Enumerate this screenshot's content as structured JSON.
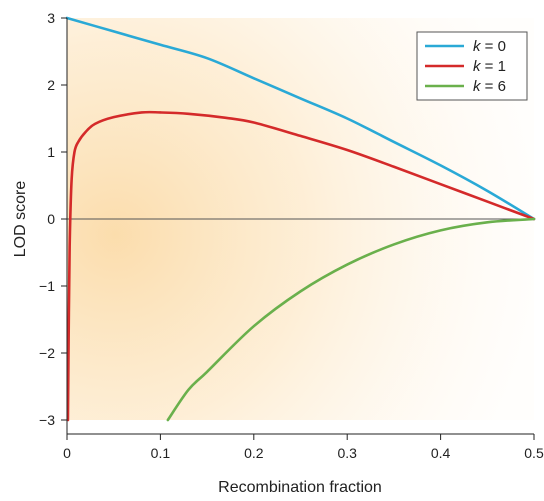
{
  "chart_data": {
    "type": "line",
    "title": "",
    "xlabel": "Recombination fraction",
    "ylabel": "LOD score",
    "xlim": [
      0,
      0.5
    ],
    "ylim": [
      -3,
      3
    ],
    "x_ticks": [
      0,
      0.1,
      0.2,
      0.3,
      0.4,
      0.5
    ],
    "x_tick_labels": [
      "0",
      "0.1",
      "0.2",
      "0.3",
      "0.4",
      "0.5"
    ],
    "y_ticks": [
      -3,
      -2,
      -1,
      0,
      1,
      2,
      3
    ],
    "y_tick_labels": [
      "−3",
      "−2",
      "−1",
      "0",
      "1",
      "2",
      "3"
    ],
    "grid": false,
    "zero_line": true,
    "legend_position": "top-right",
    "background": "warm orange radial gradient",
    "series": [
      {
        "name_italic": "k",
        "name_rest": " = 0",
        "color": "#2aa9d6",
        "x": [
          0.0,
          0.05,
          0.1,
          0.15,
          0.2,
          0.25,
          0.3,
          0.35,
          0.4,
          0.45,
          0.5
        ],
        "y": [
          3.0,
          2.8,
          2.6,
          2.4,
          2.1,
          1.8,
          1.5,
          1.15,
          0.8,
          0.42,
          0.0
        ]
      },
      {
        "name_italic": "k",
        "name_rest": " = 1",
        "color": "#d42a2a",
        "x": [
          0.001,
          0.002,
          0.003,
          0.005,
          0.008,
          0.012,
          0.02,
          0.03,
          0.05,
          0.08,
          0.1,
          0.13,
          0.17,
          0.2,
          0.25,
          0.3,
          0.35,
          0.4,
          0.45,
          0.5
        ],
        "y": [
          -3.0,
          -1.4,
          -0.3,
          0.6,
          1.0,
          1.15,
          1.3,
          1.42,
          1.52,
          1.59,
          1.59,
          1.57,
          1.51,
          1.44,
          1.24,
          1.03,
          0.78,
          0.52,
          0.26,
          0.0
        ]
      },
      {
        "name_italic": "k",
        "name_rest": " = 6",
        "color": "#6ab04c",
        "x": [
          0.108,
          0.13,
          0.15,
          0.2,
          0.25,
          0.3,
          0.35,
          0.4,
          0.45,
          0.5
        ],
        "y": [
          -3.0,
          -2.55,
          -2.28,
          -1.6,
          -1.08,
          -0.68,
          -0.38,
          -0.17,
          -0.05,
          0.0
        ]
      }
    ]
  }
}
